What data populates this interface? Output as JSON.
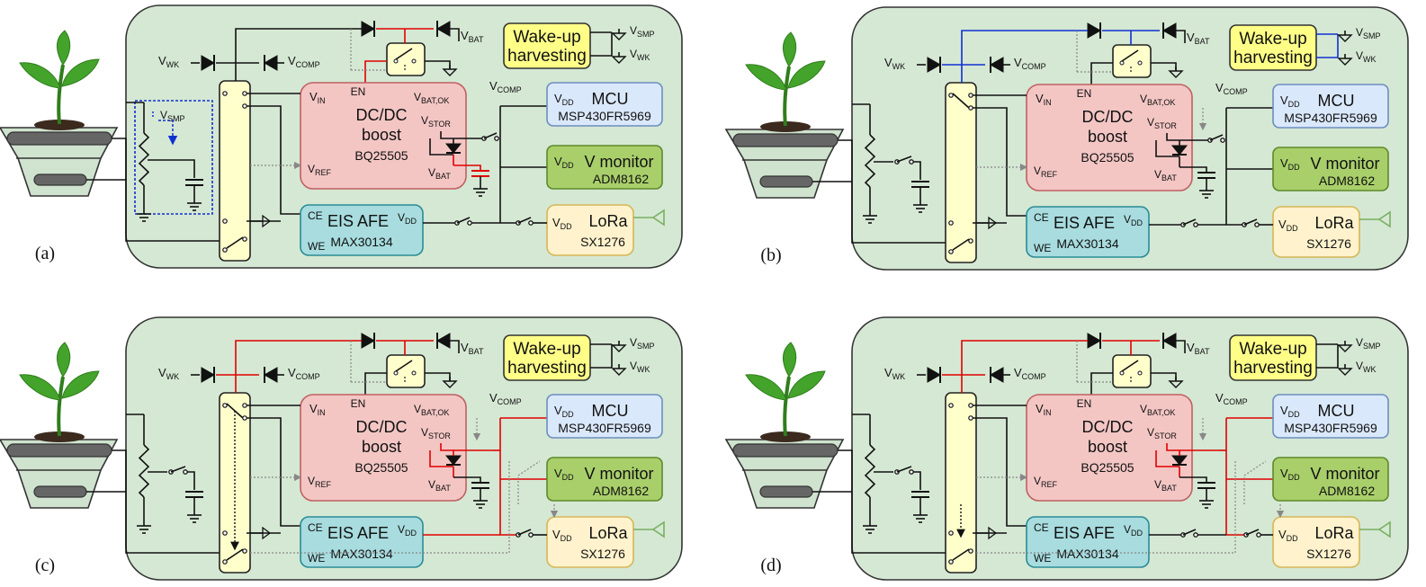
{
  "labels": {
    "vwk": "V",
    "vwk_sub": "WK",
    "vcomp": "V",
    "vcomp_sub": "COMP",
    "vbat": "V",
    "vbat_sub": "BAT",
    "vsmp": "V",
    "vsmp_sub": "SMP",
    "vin": "V",
    "vin_sub": "IN",
    "en": "EN",
    "vbatok": "V",
    "vbatok_sub": "BAT,OK",
    "vstor": "V",
    "vstor_sub": "STOR",
    "vref": "V",
    "vref_sub": "REF",
    "vdd": "V",
    "vdd_sub": "DD",
    "ce": "CE",
    "we": "WE"
  },
  "blocks": {
    "wake_line1": "Wake-up",
    "wake_line2": "harvesting",
    "dcdc_line1": "DC/DC",
    "dcdc_line2": "boost",
    "dcdc_chip": "BQ25505",
    "mcu_title": "MCU",
    "mcu_chip": "MSP430FR5969",
    "vmon_title": "V monitor",
    "vmon_chip": "ADM8162",
    "eis_title": "EIS AFE",
    "eis_chip": "MAX30134",
    "lora_title": "LoRa",
    "lora_chip": "SX1276"
  },
  "panels": [
    {
      "tag": "(a)",
      "variant": "a"
    },
    {
      "tag": "(b)",
      "variant": "b"
    },
    {
      "tag": "(c)",
      "variant": "c"
    },
    {
      "tag": "(d)",
      "variant": "d"
    }
  ],
  "colors": {
    "panel_bg": "#d5e8d4",
    "panel_border": "#333333",
    "dcdc_fill": "#f3c6c4",
    "dcdc_border": "#c06060",
    "mcu_fill": "#dae8fc",
    "mcu_border": "#6c8ebf",
    "vmon_fill": "#a9cf6b",
    "vmon_border": "#5d8a2a",
    "eis_fill": "#a8dcdf",
    "eis_border": "#2a8c96",
    "lora_fill": "#fff2cc",
    "lora_border": "#d6b656",
    "wake_fill": "#ffff88",
    "wake_border": "#333333",
    "mux_fill": "#ffffcc",
    "wire": "#111111",
    "active_red": "#e00000",
    "active_blue": "#1030d0",
    "dotted": "#888888",
    "antenna": "#78b060",
    "pot_fill": "#cfe3cf",
    "soil_bar": "#666666",
    "leaf": "#43a32a",
    "leaf_dark": "#2f7d1d",
    "dirt": "#3b2a1d"
  }
}
